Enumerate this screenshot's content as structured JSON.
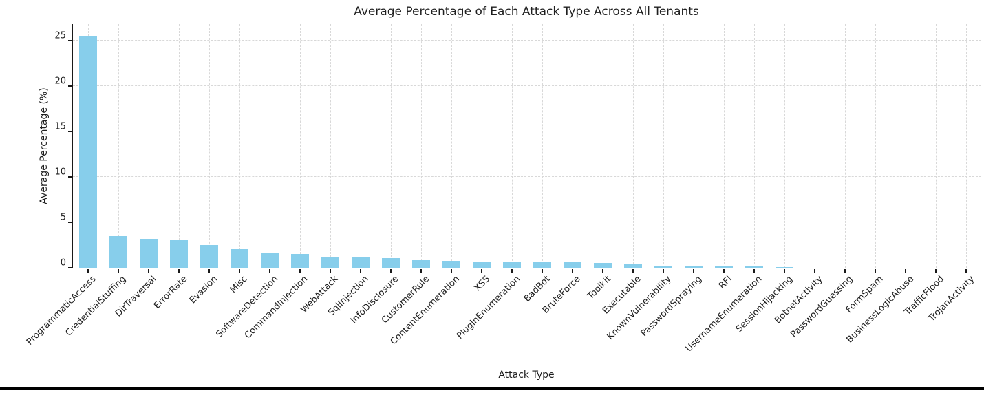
{
  "chart_data": {
    "type": "bar",
    "title": "Average Percentage of Each Attack Type Across All Tenants",
    "xlabel": "Attack Type",
    "ylabel": "Average Percentage (%)",
    "categories": [
      "ProgrammaticAccess",
      "CredentialStuffing",
      "DirTraversal",
      "ErrorRate",
      "Evasion",
      "Misc",
      "SoftwareDetection",
      "CommandInjection",
      "WebAttack",
      "SqlInjection",
      "InfoDisclosure",
      "CustomerRule",
      "ContentEnumeration",
      "XSS",
      "PluginEnumeration",
      "BadBot",
      "BruteForce",
      "Toolkit",
      "Executable",
      "KnownVulnerability",
      "PasswordSpraying",
      "RFI",
      "UsernameEnumeration",
      "SessionHijacking",
      "BotnetActivity",
      "PasswordGuessing",
      "FormSpam",
      "BusinessLogicAbuse",
      "TrafficFlood",
      "TrojanActivity"
    ],
    "values": [
      25.5,
      3.5,
      3.2,
      3.0,
      2.5,
      2.05,
      1.65,
      1.5,
      1.2,
      1.1,
      1.05,
      0.85,
      0.78,
      0.72,
      0.7,
      0.68,
      0.58,
      0.54,
      0.36,
      0.25,
      0.2,
      0.17,
      0.12,
      0.07,
      0.03,
      0.02,
      0.02,
      0.01,
      0.01,
      0.01
    ],
    "yticks": [
      0,
      5,
      10,
      15,
      20,
      25
    ],
    "ylim": [
      0,
      26.8
    ],
    "grid": true,
    "legend": false,
    "bar_color": "#87CEEB",
    "grid_color": "#d8d8d8",
    "axis_color": "#1a1a1a",
    "text_color": "#1f1f1f",
    "background_color": "#ffffff",
    "bottom_rule_color": "#000000"
  }
}
